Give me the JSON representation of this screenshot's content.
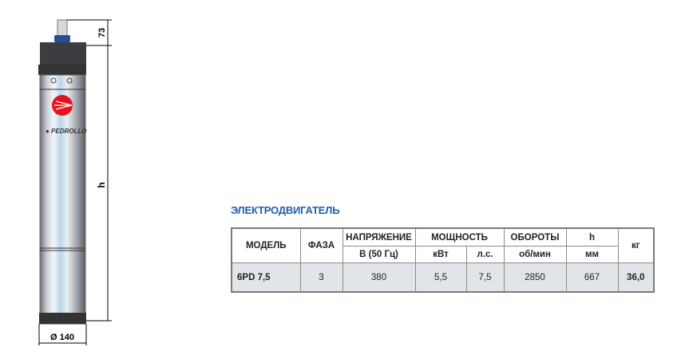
{
  "drawing": {
    "dim_top": "73",
    "dim_height": "h",
    "dim_diameter": "Ø 140",
    "brand": "PEDROLLO"
  },
  "title": "ЭЛЕКТРОДВИГАТЕЛЬ",
  "table": {
    "headers": {
      "model": "МОДЕЛЬ",
      "phase": "ФАЗА",
      "voltage": "НАПРЯЖЕНИЕ",
      "voltage_unit": "В (50 Гц)",
      "power": "МОЩНОСТЬ",
      "kw": "кВт",
      "hp": "л.с.",
      "rpm": "ОБОРОТЫ",
      "rpm_unit": "об/мин",
      "h": "h",
      "h_unit": "мм",
      "kg": "кг"
    },
    "rows": [
      {
        "model": "6PD 7,5",
        "phase": "3",
        "voltage": "380",
        "kw": "5,5",
        "hp": "7,5",
        "rpm": "2850",
        "h": "667",
        "kg": "36,0"
      }
    ]
  }
}
